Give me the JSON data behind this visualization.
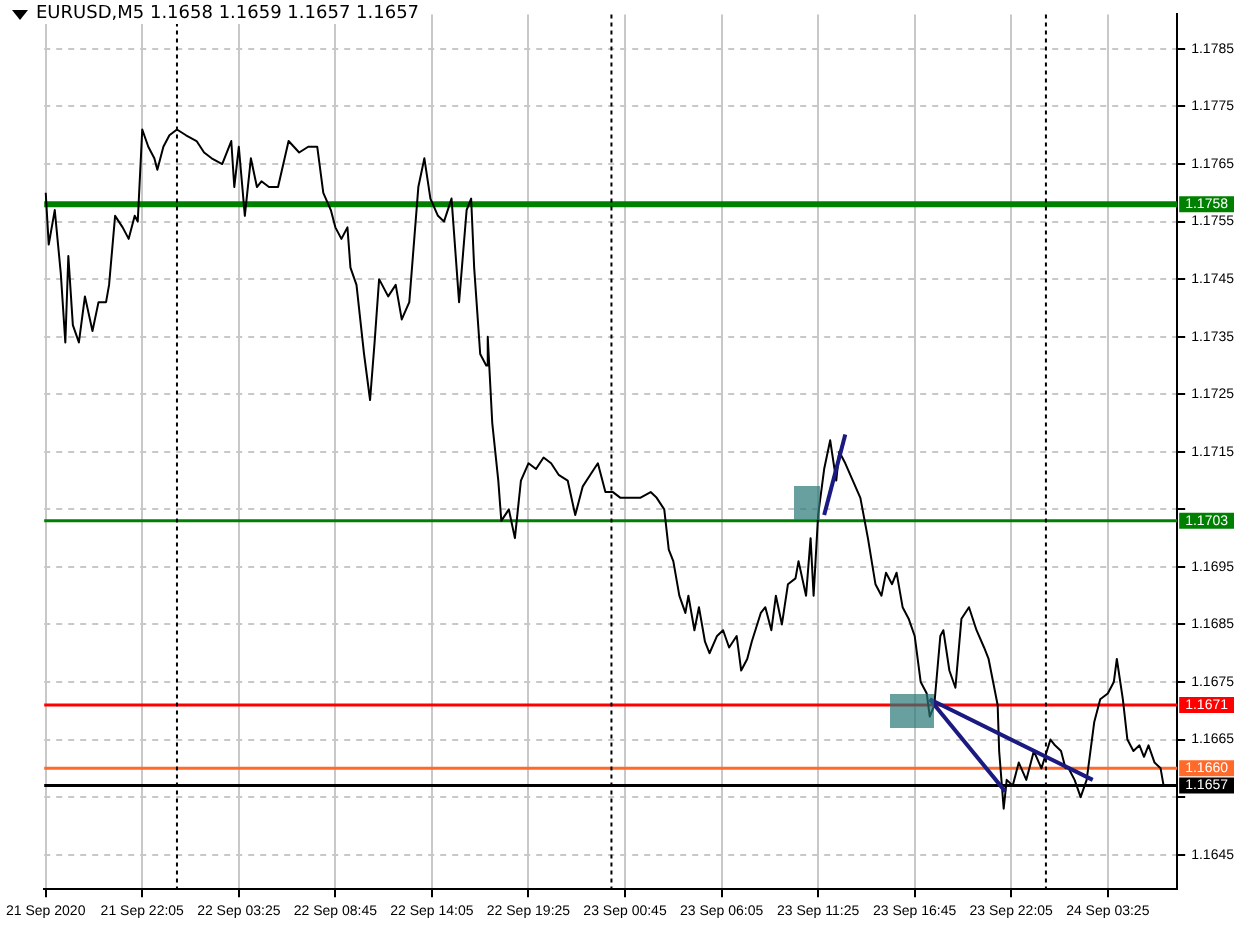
{
  "chart_data": {
    "type": "line",
    "title": "EURUSD,M5  1.1658 1.1659 1.1657 1.1657",
    "xlim": [
      "2020-09-21T16:40",
      "2020-09-24T07:15"
    ],
    "ylim": [
      1.1639,
      1.1791
    ],
    "xticks": [
      {
        "value": "2020-09-21T16:45",
        "label": "21 Sep 2020"
      },
      {
        "value": "2020-09-21T22:05",
        "label": "21 Sep 22:05"
      },
      {
        "value": "2020-09-22T03:25",
        "label": "22 Sep 03:25"
      },
      {
        "value": "2020-09-22T08:45",
        "label": "22 Sep 08:45"
      },
      {
        "value": "2020-09-22T14:05",
        "label": "22 Sep 14:05"
      },
      {
        "value": "2020-09-22T19:25",
        "label": "22 Sep 19:25"
      },
      {
        "value": "2020-09-23T00:45",
        "label": "23 Sep 00:45"
      },
      {
        "value": "2020-09-23T06:05",
        "label": "23 Sep 06:05"
      },
      {
        "value": "2020-09-23T11:25",
        "label": "23 Sep 11:25"
      },
      {
        "value": "2020-09-23T16:45",
        "label": "23 Sep 16:45"
      },
      {
        "value": "2020-09-23T22:05",
        "label": "23 Sep 22:05"
      },
      {
        "value": "2020-09-24T03:25",
        "label": "24 Sep 03:25"
      }
    ],
    "yticks": [
      1.1645,
      {
        "value": 1.1655,
        "label": null
      },
      1.1665,
      1.1675,
      1.1685,
      1.1695,
      {
        "value": 1.1705,
        "label": null
      },
      1.1715,
      1.1725,
      1.1735,
      1.1745,
      1.1755,
      1.1765,
      1.1775,
      1.1785
    ],
    "grid": true,
    "marker": "none",
    "line_style": "solid",
    "series": [
      {
        "color": "#000000",
        "x": [
          "2020-09-21T16:45",
          "2020-09-21T16:55",
          "2020-09-21T17:15",
          "2020-09-21T17:35",
          "2020-09-21T17:50",
          "2020-09-21T18:00",
          "2020-09-21T18:15",
          "2020-09-21T18:35",
          "2020-09-21T18:55",
          "2020-09-21T19:20",
          "2020-09-21T19:40",
          "2020-09-21T20:05",
          "2020-09-21T20:15",
          "2020-09-21T20:35",
          "2020-09-21T21:00",
          "2020-09-21T21:20",
          "2020-09-21T21:40",
          "2020-09-21T21:50",
          "2020-09-21T22:05",
          "2020-09-21T22:25",
          "2020-09-21T22:45",
          "2020-09-21T22:55",
          "2020-09-21T23:15",
          "2020-09-21T23:35",
          "2020-09-22T00:00",
          "2020-09-22T00:30",
          "2020-09-22T01:05",
          "2020-09-22T01:30",
          "2020-09-22T01:55",
          "2020-09-22T02:30",
          "2020-09-22T03:00",
          "2020-09-22T03:10",
          "2020-09-22T03:25",
          "2020-09-22T03:45",
          "2020-09-22T04:05",
          "2020-09-22T04:25",
          "2020-09-22T04:40",
          "2020-09-22T05:05",
          "2020-09-22T05:35",
          "2020-09-22T06:10",
          "2020-09-22T06:45",
          "2020-09-22T07:15",
          "2020-09-22T07:45",
          "2020-09-22T08:05",
          "2020-09-22T08:30",
          "2020-09-22T08:45",
          "2020-09-22T09:05",
          "2020-09-22T09:25",
          "2020-09-22T09:35",
          "2020-09-22T09:55",
          "2020-09-22T10:20",
          "2020-09-22T10:40",
          "2020-09-22T10:55",
          "2020-09-22T11:10",
          "2020-09-22T11:40",
          "2020-09-22T12:05",
          "2020-09-22T12:25",
          "2020-09-22T12:50",
          "2020-09-22T13:20",
          "2020-09-22T13:40",
          "2020-09-22T14:00",
          "2020-09-22T14:25",
          "2020-09-22T14:45",
          "2020-09-22T15:10",
          "2020-09-22T15:35",
          "2020-09-22T16:00",
          "2020-09-22T16:15",
          "2020-09-22T16:25",
          "2020-09-22T16:45",
          "2020-09-22T17:05",
          "2020-09-22T17:10",
          "2020-09-22T17:25",
          "2020-09-22T17:45",
          "2020-09-22T17:55",
          "2020-09-22T18:20",
          "2020-09-22T18:40",
          "2020-09-22T19:00",
          "2020-09-22T19:25",
          "2020-09-22T19:50",
          "2020-09-22T20:15",
          "2020-09-22T20:40",
          "2020-09-22T21:05",
          "2020-09-22T21:35",
          "2020-09-22T22:00",
          "2020-09-22T22:25",
          "2020-09-22T22:50",
          "2020-09-22T23:15",
          "2020-09-22T23:40",
          "2020-09-23T00:05",
          "2020-09-23T00:30",
          "2020-09-23T01:05",
          "2020-09-23T01:35",
          "2020-09-23T02:10",
          "2020-09-23T02:30",
          "2020-09-23T02:55",
          "2020-09-23T03:10",
          "2020-09-23T03:25",
          "2020-09-23T03:45",
          "2020-09-23T04:05",
          "2020-09-23T04:15",
          "2020-09-23T04:35",
          "2020-09-23T04:50",
          "2020-09-23T05:10",
          "2020-09-23T05:25",
          "2020-09-23T05:50",
          "2020-09-23T06:10",
          "2020-09-23T06:30",
          "2020-09-23T06:55",
          "2020-09-23T07:10",
          "2020-09-23T07:30",
          "2020-09-23T07:45",
          "2020-09-23T08:15",
          "2020-09-23T08:30",
          "2020-09-23T08:50",
          "2020-09-23T09:05",
          "2020-09-23T09:25",
          "2020-09-23T09:45",
          "2020-09-23T10:10",
          "2020-09-23T10:20",
          "2020-09-23T10:45",
          "2020-09-23T11:00",
          "2020-09-23T11:10",
          "2020-09-23T11:25",
          "2020-09-23T11:45",
          "2020-09-23T12:05",
          "2020-09-23T12:25",
          "2020-09-23T12:35",
          "2020-09-23T12:55",
          "2020-09-23T13:20",
          "2020-09-23T13:45",
          "2020-09-23T14:10",
          "2020-09-23T14:35",
          "2020-09-23T14:55",
          "2020-09-23T15:10",
          "2020-09-23T15:30",
          "2020-09-23T15:45",
          "2020-09-23T16:05",
          "2020-09-23T16:25",
          "2020-09-23T16:45",
          "2020-09-23T17:05",
          "2020-09-23T17:25",
          "2020-09-23T17:35",
          "2020-09-23T17:50",
          "2020-09-23T18:10",
          "2020-09-23T18:20",
          "2020-09-23T18:40",
          "2020-09-23T19:00",
          "2020-09-23T19:20",
          "2020-09-23T19:45",
          "2020-09-23T20:10",
          "2020-09-23T20:35",
          "2020-09-23T20:50",
          "2020-09-23T21:05",
          "2020-09-23T21:20",
          "2020-09-23T21:25",
          "2020-09-23T21:40",
          "2020-09-23T21:50",
          "2020-09-23T22:10",
          "2020-09-23T22:30",
          "2020-09-23T22:55",
          "2020-09-23T23:20",
          "2020-09-23T23:45",
          "2020-09-24T00:15",
          "2020-09-24T00:30",
          "2020-09-24T00:50",
          "2020-09-24T01:05",
          "2020-09-24T01:15",
          "2020-09-24T01:35",
          "2020-09-24T01:55",
          "2020-09-24T02:15",
          "2020-09-24T02:40",
          "2020-09-24T03:00",
          "2020-09-24T03:25",
          "2020-09-24T03:45",
          "2020-09-24T03:55",
          "2020-09-24T04:15",
          "2020-09-24T04:30",
          "2020-09-24T04:50",
          "2020-09-24T05:10",
          "2020-09-24T05:25",
          "2020-09-24T05:40",
          "2020-09-24T06:00",
          "2020-09-24T06:20",
          "2020-09-24T06:30"
        ],
        "values": [
          1.176,
          1.1751,
          1.1757,
          1.1746,
          1.1734,
          1.1749,
          1.1737,
          1.1734,
          1.1742,
          1.1736,
          1.1741,
          1.1741,
          1.1744,
          1.1756,
          1.1754,
          1.1752,
          1.1756,
          1.1755,
          1.1771,
          1.1768,
          1.1766,
          1.1764,
          1.1768,
          1.177,
          1.1771,
          1.177,
          1.1769,
          1.1767,
          1.1766,
          1.1765,
          1.1769,
          1.1761,
          1.1768,
          1.1756,
          1.1766,
          1.1761,
          1.1762,
          1.1761,
          1.1761,
          1.1769,
          1.1767,
          1.1768,
          1.1768,
          1.176,
          1.1757,
          1.1754,
          1.1752,
          1.1754,
          1.1747,
          1.1744,
          1.1732,
          1.1724,
          1.1734,
          1.1745,
          1.1742,
          1.1744,
          1.1738,
          1.1741,
          1.1761,
          1.1766,
          1.1759,
          1.1756,
          1.1755,
          1.1759,
          1.1741,
          1.1757,
          1.1759,
          1.1747,
          1.1732,
          1.173,
          1.1735,
          1.172,
          1.171,
          1.1703,
          1.1705,
          1.17,
          1.171,
          1.1713,
          1.1712,
          1.1714,
          1.1713,
          1.1711,
          1.171,
          1.1704,
          1.1709,
          1.1711,
          1.1713,
          1.1708,
          1.1708,
          1.1707,
          1.1707,
          1.1707,
          1.1708,
          1.1707,
          1.1705,
          1.1698,
          1.1696,
          1.169,
          1.1687,
          1.169,
          1.1684,
          1.1688,
          1.1682,
          1.168,
          1.1683,
          1.1684,
          1.1681,
          1.1683,
          1.1677,
          1.1679,
          1.1682,
          1.1687,
          1.1688,
          1.1684,
          1.169,
          1.1685,
          1.1692,
          1.1693,
          1.1696,
          1.169,
          1.17,
          1.169,
          1.1704,
          1.1712,
          1.1717,
          1.171,
          1.1715,
          1.1713,
          1.171,
          1.1707,
          1.17,
          1.1692,
          1.169,
          1.1694,
          1.1692,
          1.1694,
          1.1688,
          1.1686,
          1.1683,
          1.1675,
          1.1673,
          1.1669,
          1.1671,
          1.1683,
          1.1684,
          1.1677,
          1.1674,
          1.1686,
          1.1688,
          1.1684,
          1.1681,
          1.1679,
          1.1675,
          1.1671,
          1.1663,
          1.1653,
          1.1658,
          1.1657,
          1.1661,
          1.1658,
          1.1663,
          1.166,
          1.1665,
          1.1664,
          1.1663,
          1.166,
          1.166,
          1.1658,
          1.1655,
          1.1658,
          1.1668,
          1.1672,
          1.1673,
          1.1675,
          1.1679,
          1.1672,
          1.1665,
          1.1663,
          1.1664,
          1.1662,
          1.1664,
          1.1661,
          1.166,
          1.1657
        ]
      },
      {
        "type": "line",
        "color": "#1a1a80",
        "x": [
          "2020-09-23T11:45",
          "2020-09-23T12:55"
        ],
        "values": [
          1.1704,
          1.1718
        ]
      },
      {
        "type": "line",
        "color": "#1a1a80",
        "x": [
          "2020-09-23T17:35",
          "2020-09-23T21:45"
        ],
        "values": [
          1.1672,
          1.1656
        ]
      },
      {
        "type": "line",
        "color": "#1a1a80",
        "x": [
          "2020-09-23T17:35",
          "2020-09-24T02:35"
        ],
        "values": [
          1.1672,
          1.1658
        ]
      }
    ],
    "ref_lines": [
      {
        "axis": "y",
        "value": 1.1758,
        "label": "1.1758",
        "color": "#008000"
      },
      {
        "axis": "y",
        "value": 1.1703,
        "label": "1.1703",
        "color": "#008000"
      },
      {
        "axis": "y",
        "value": 1.1671,
        "label": "1.1671",
        "color": "#ff0000"
      },
      {
        "axis": "y",
        "value": 1.166,
        "label": "1.1660",
        "color": "#ff6a2a"
      },
      {
        "axis": "y",
        "value": 1.1657,
        "label": "1.1657",
        "color": "#000000"
      },
      {
        "axis": "x",
        "value": "2020-09-22",
        "color": "#000000",
        "line_style": "dotted"
      },
      {
        "axis": "x",
        "value": "2020-09-23",
        "color": "#000000",
        "line_style": "dotted"
      },
      {
        "axis": "x",
        "value": "2020-09-24",
        "color": "#000000",
        "line_style": "dotted"
      }
    ]
  }
}
